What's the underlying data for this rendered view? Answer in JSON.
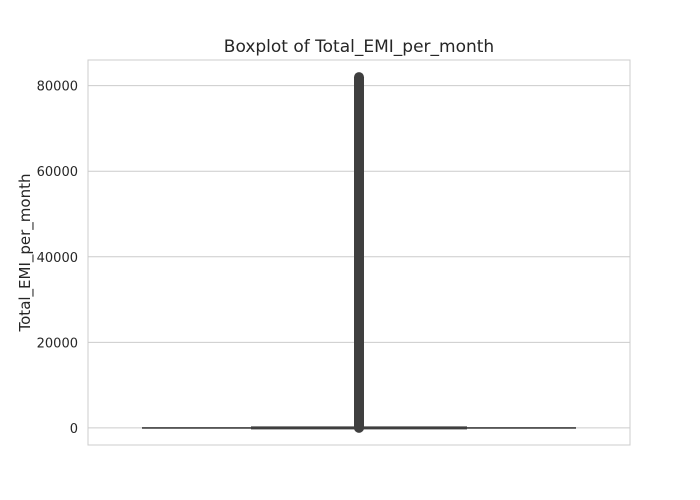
{
  "chart_data": {
    "type": "box",
    "title": "Boxplot of Total_EMI_per_month",
    "xlabel": "",
    "ylabel": "Total_EMI_per_month",
    "ylim": [
      -4000,
      86000
    ],
    "yticks": [
      0,
      20000,
      40000,
      60000,
      80000
    ],
    "ytick_labels": [
      "0",
      "20000",
      "40000",
      "60000",
      "80000"
    ],
    "grid": true,
    "series": [
      {
        "values_summary": {
          "whisker_low": 0,
          "q1": 0,
          "median": 0,
          "q3": 0,
          "whisker_high": 0,
          "outliers_min": 0,
          "outliers_max": 82000
        }
      }
    ],
    "colors": {
      "box": "#3f3f3f",
      "grid": "#cccccc",
      "frame": "#cccccc",
      "text": "#262626"
    }
  }
}
